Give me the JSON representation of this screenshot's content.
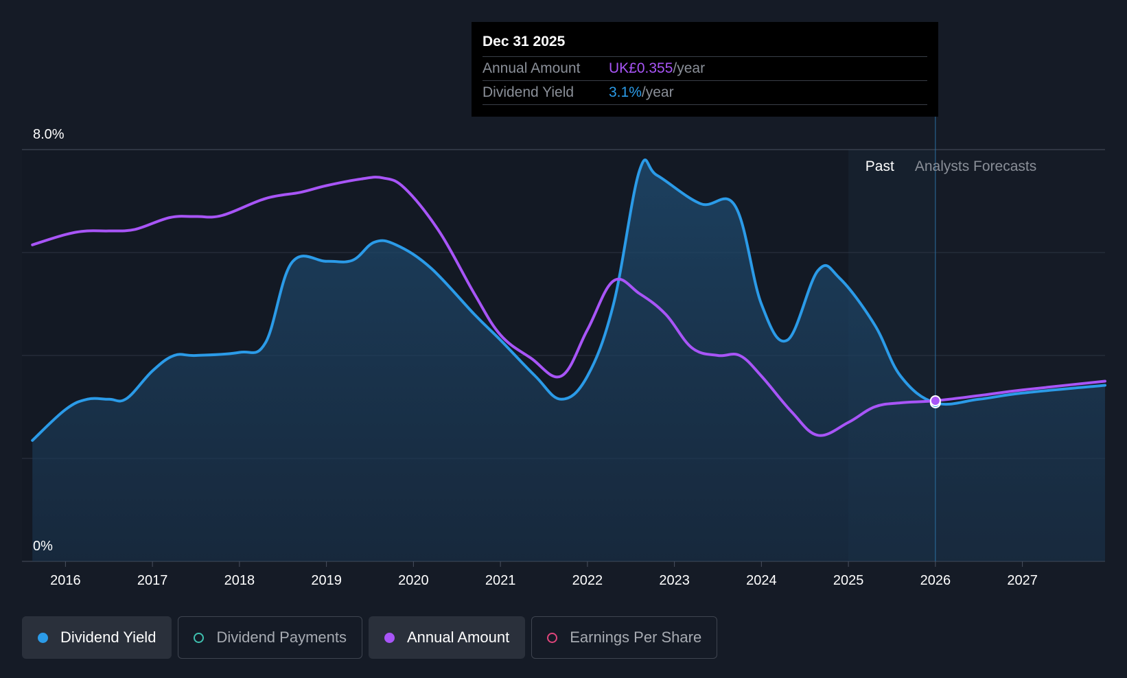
{
  "tooltip": {
    "date": "Dec 31 2025",
    "rows": [
      {
        "label": "Annual Amount",
        "value": "UK£0.355",
        "unit": "/year"
      },
      {
        "label": "Dividend Yield",
        "value": "3.1%",
        "unit": "/year"
      }
    ]
  },
  "legend": [
    {
      "label": "Dividend Yield",
      "color": "#2b9be8",
      "active": true,
      "filled": true
    },
    {
      "label": "Dividend Payments",
      "color": "#3fc1b0",
      "active": false,
      "filled": false
    },
    {
      "label": "Annual Amount",
      "color": "#a855f7",
      "active": true,
      "filled": true
    },
    {
      "label": "Earnings Per Share",
      "color": "#e0457b",
      "active": false,
      "filled": false
    }
  ],
  "chart_data": {
    "type": "line",
    "y_axis": {
      "top_label": "8.0%",
      "bottom_label": "0%",
      "ylim": [
        0,
        8.0
      ],
      "gridlines": [
        2,
        4,
        6,
        8
      ]
    },
    "x_axis": {
      "ticks": [
        "2016",
        "2017",
        "2018",
        "2019",
        "2020",
        "2021",
        "2022",
        "2023",
        "2024",
        "2025",
        "2026",
        "2027"
      ],
      "xlim": [
        2015.5,
        2027.95
      ]
    },
    "region_labels": {
      "past": "Past",
      "forecast": "Analysts Forecasts"
    },
    "past_forecast_boundary": 2026.0,
    "past_shade_start": 2025.0,
    "series": [
      {
        "name": "Dividend Yield",
        "color": "#2b9be8",
        "filled": true,
        "points": [
          [
            2015.62,
            2.35
          ],
          [
            2016.0,
            2.95
          ],
          [
            2016.25,
            3.15
          ],
          [
            2016.5,
            3.15
          ],
          [
            2016.7,
            3.16
          ],
          [
            2017.0,
            3.7
          ],
          [
            2017.25,
            4.0
          ],
          [
            2017.5,
            4.0
          ],
          [
            2018.0,
            4.06
          ],
          [
            2018.3,
            4.25
          ],
          [
            2018.6,
            5.8
          ],
          [
            2019.0,
            5.83
          ],
          [
            2019.3,
            5.85
          ],
          [
            2019.55,
            6.2
          ],
          [
            2019.8,
            6.15
          ],
          [
            2020.2,
            5.7
          ],
          [
            2020.7,
            4.8
          ],
          [
            2021.0,
            4.3
          ],
          [
            2021.4,
            3.6
          ],
          [
            2021.7,
            3.15
          ],
          [
            2022.0,
            3.6
          ],
          [
            2022.3,
            5.0
          ],
          [
            2022.6,
            7.6
          ],
          [
            2022.8,
            7.5
          ],
          [
            2023.3,
            6.95
          ],
          [
            2023.7,
            6.9
          ],
          [
            2024.0,
            5.0
          ],
          [
            2024.3,
            4.3
          ],
          [
            2024.65,
            5.65
          ],
          [
            2024.9,
            5.5
          ],
          [
            2025.3,
            4.6
          ],
          [
            2025.6,
            3.6
          ],
          [
            2026.0,
            3.08
          ],
          [
            2026.5,
            3.15
          ],
          [
            2027.0,
            3.27
          ],
          [
            2027.95,
            3.42
          ]
        ]
      },
      {
        "name": "Annual Amount",
        "color": "#a855f7",
        "filled": false,
        "points": [
          [
            2015.62,
            6.15
          ],
          [
            2016.0,
            6.35
          ],
          [
            2016.25,
            6.42
          ],
          [
            2016.5,
            6.42
          ],
          [
            2016.8,
            6.45
          ],
          [
            2017.2,
            6.68
          ],
          [
            2017.5,
            6.7
          ],
          [
            2017.8,
            6.72
          ],
          [
            2018.3,
            7.05
          ],
          [
            2018.7,
            7.17
          ],
          [
            2019.0,
            7.3
          ],
          [
            2019.4,
            7.43
          ],
          [
            2019.65,
            7.45
          ],
          [
            2019.9,
            7.25
          ],
          [
            2020.3,
            6.4
          ],
          [
            2020.7,
            5.2
          ],
          [
            2021.0,
            4.4
          ],
          [
            2021.35,
            3.95
          ],
          [
            2021.7,
            3.6
          ],
          [
            2022.0,
            4.5
          ],
          [
            2022.3,
            5.45
          ],
          [
            2022.6,
            5.2
          ],
          [
            2022.9,
            4.8
          ],
          [
            2023.2,
            4.15
          ],
          [
            2023.5,
            4.0
          ],
          [
            2023.75,
            4.0
          ],
          [
            2024.0,
            3.6
          ],
          [
            2024.35,
            2.9
          ],
          [
            2024.65,
            2.45
          ],
          [
            2025.0,
            2.7
          ],
          [
            2025.3,
            3.0
          ],
          [
            2025.6,
            3.08
          ],
          [
            2026.0,
            3.12
          ],
          [
            2026.5,
            3.22
          ],
          [
            2027.0,
            3.33
          ],
          [
            2027.95,
            3.5
          ]
        ]
      }
    ],
    "highlight": {
      "x": 2026.0,
      "annual_amount": 3.12,
      "dividend_yield": 3.08
    }
  }
}
